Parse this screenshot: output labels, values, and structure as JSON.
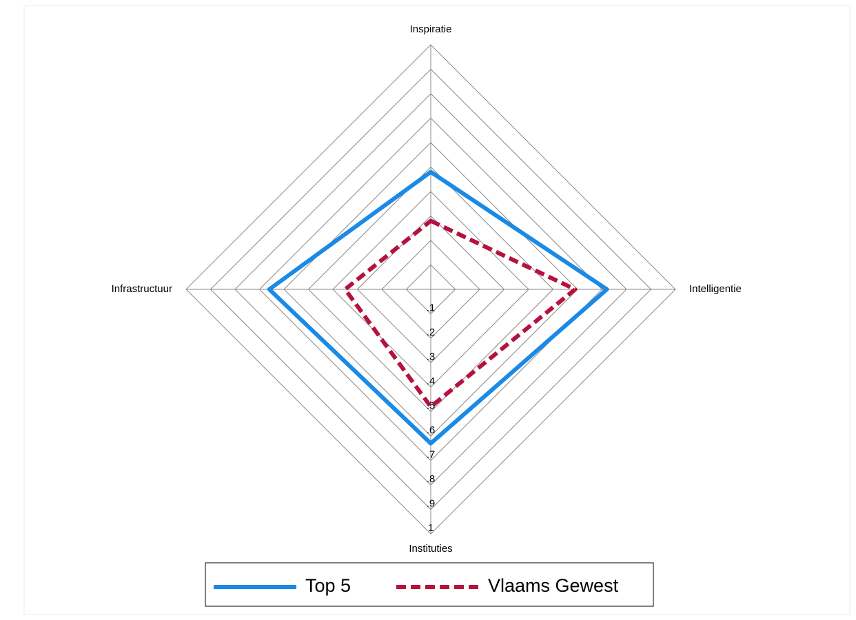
{
  "chart_data": {
    "type": "radar",
    "categories": [
      "Inspiratie",
      "Intelligentie",
      "Instituties",
      "Infrastructuur"
    ],
    "series": [
      {
        "name": "Top 5",
        "color": "#1a8ae6",
        "dash": "solid",
        "values": [
          0.48,
          0.72,
          0.63,
          0.66
        ]
      },
      {
        "name": "Vlaams Gewest",
        "color": "#b5133d",
        "dash": "dashed",
        "values": [
          0.28,
          0.59,
          0.48,
          0.35
        ]
      }
    ],
    "rlim": [
      0,
      1
    ],
    "rticks": [
      {
        "value": 0.1,
        "label": ".1"
      },
      {
        "value": 0.2,
        "label": ".2"
      },
      {
        "value": 0.3,
        "label": ".3"
      },
      {
        "value": 0.4,
        "label": ".4"
      },
      {
        "value": 0.5,
        "label": ".5"
      },
      {
        "value": 0.6,
        "label": ".6"
      },
      {
        "value": 0.7,
        "label": ".7"
      },
      {
        "value": 0.8,
        "label": ".8"
      },
      {
        "value": 0.9,
        "label": ".9"
      },
      1
    ],
    "grid": true,
    "legend": "bottom"
  }
}
